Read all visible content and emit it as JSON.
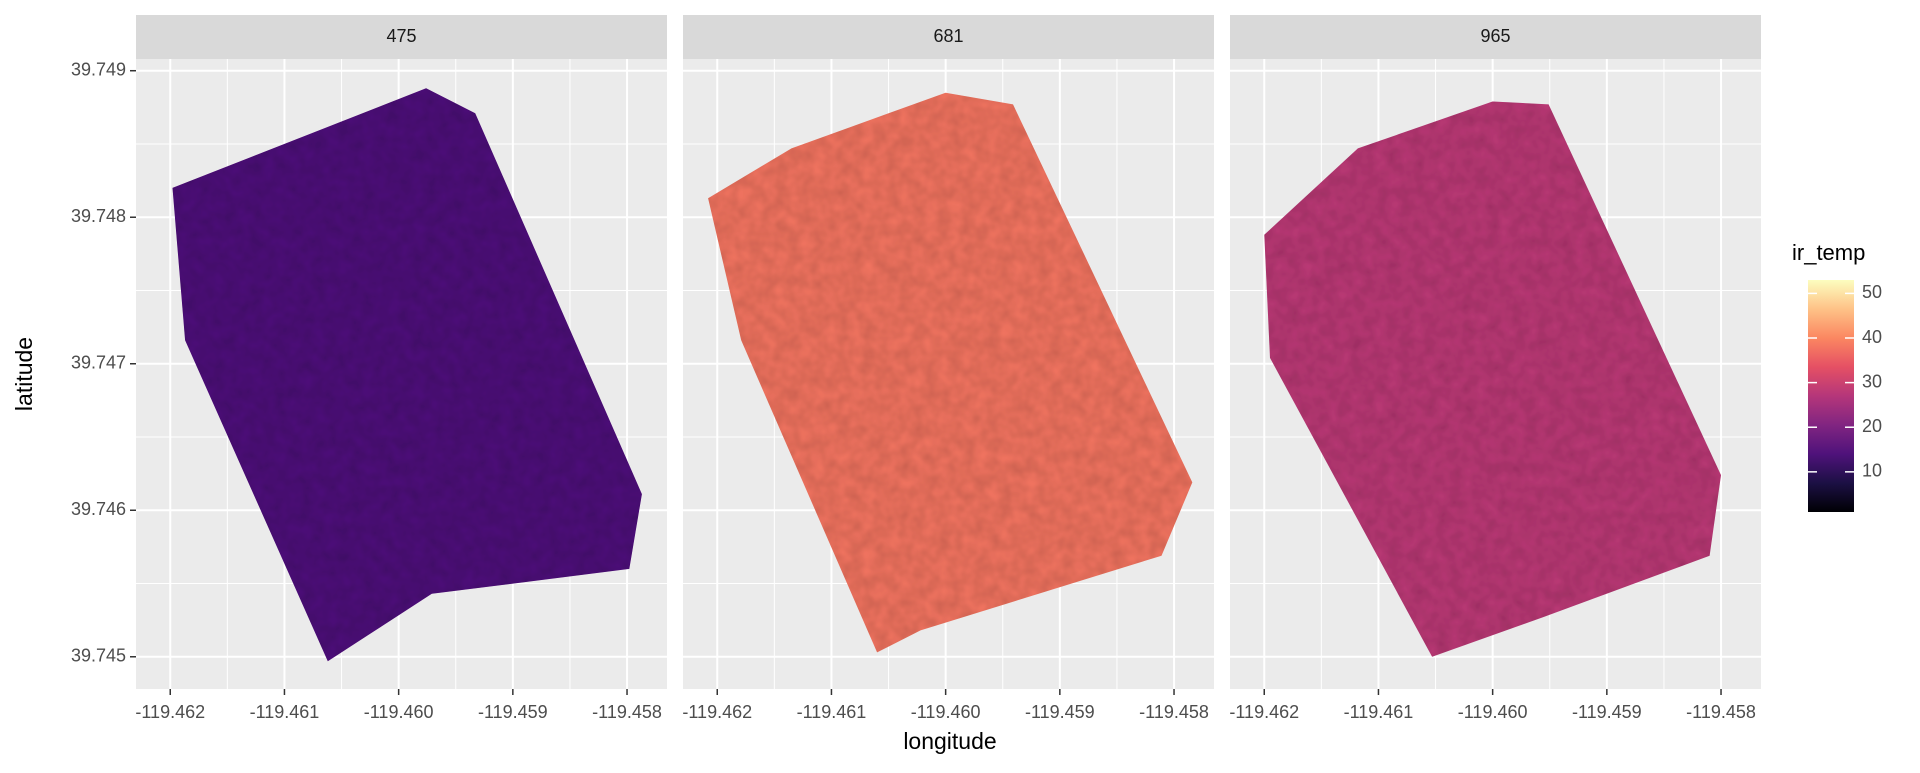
{
  "chart_data": {
    "type": "raster",
    "x_label": "longitude",
    "y_label": "latitude",
    "xlim": [
      -119.4623,
      -119.45765
    ],
    "ylim": [
      39.74478,
      39.74908
    ],
    "xticks": [
      -119.462,
      -119.461,
      {
        "value": -119.46,
        "label": "-119.460"
      },
      -119.459,
      -119.458
    ],
    "yticks": [
      39.745,
      39.746,
      39.747,
      39.748,
      39.749
    ],
    "grid": true,
    "colormap": "magma",
    "colorbar": {
      "title": "ir_temp",
      "lim": [
        1,
        53
      ],
      "ticks": [
        10,
        20,
        30,
        40,
        50
      ]
    },
    "panels": [
      {
        "label": "475",
        "mean_temp": 14,
        "outline": [
          [
            -119.46198,
            39.7482
          ],
          [
            -119.45976,
            39.74888
          ],
          [
            -119.45933,
            39.74871
          ],
          [
            -119.45787,
            39.74611
          ],
          [
            -119.45798,
            39.7456
          ],
          [
            -119.45971,
            39.74543
          ],
          [
            -119.46062,
            39.74497
          ],
          [
            -119.46187,
            39.74716
          ]
        ]
      },
      {
        "label": "681",
        "mean_temp": 38,
        "outline": [
          [
            -119.46208,
            39.74813
          ],
          [
            -119.46135,
            39.74847
          ],
          [
            -119.46,
            39.74885
          ],
          [
            -119.45941,
            39.74877
          ],
          [
            -119.45784,
            39.74619
          ],
          [
            -119.45811,
            39.74569
          ],
          [
            -119.46022,
            39.74518
          ],
          [
            -119.4606,
            39.74503
          ],
          [
            -119.46179,
            39.74716
          ]
        ]
      },
      {
        "label": "965",
        "mean_temp": 28,
        "outline": [
          [
            -119.462,
            39.74788
          ],
          [
            -119.46118,
            39.74847
          ],
          [
            -119.46,
            39.74879
          ],
          [
            -119.45951,
            39.74877
          ],
          [
            -119.458,
            39.74624
          ],
          [
            -119.4581,
            39.74569
          ],
          [
            -119.45956,
            39.74527
          ],
          [
            -119.46053,
            39.745
          ],
          [
            -119.46195,
            39.74704
          ]
        ]
      }
    ]
  }
}
